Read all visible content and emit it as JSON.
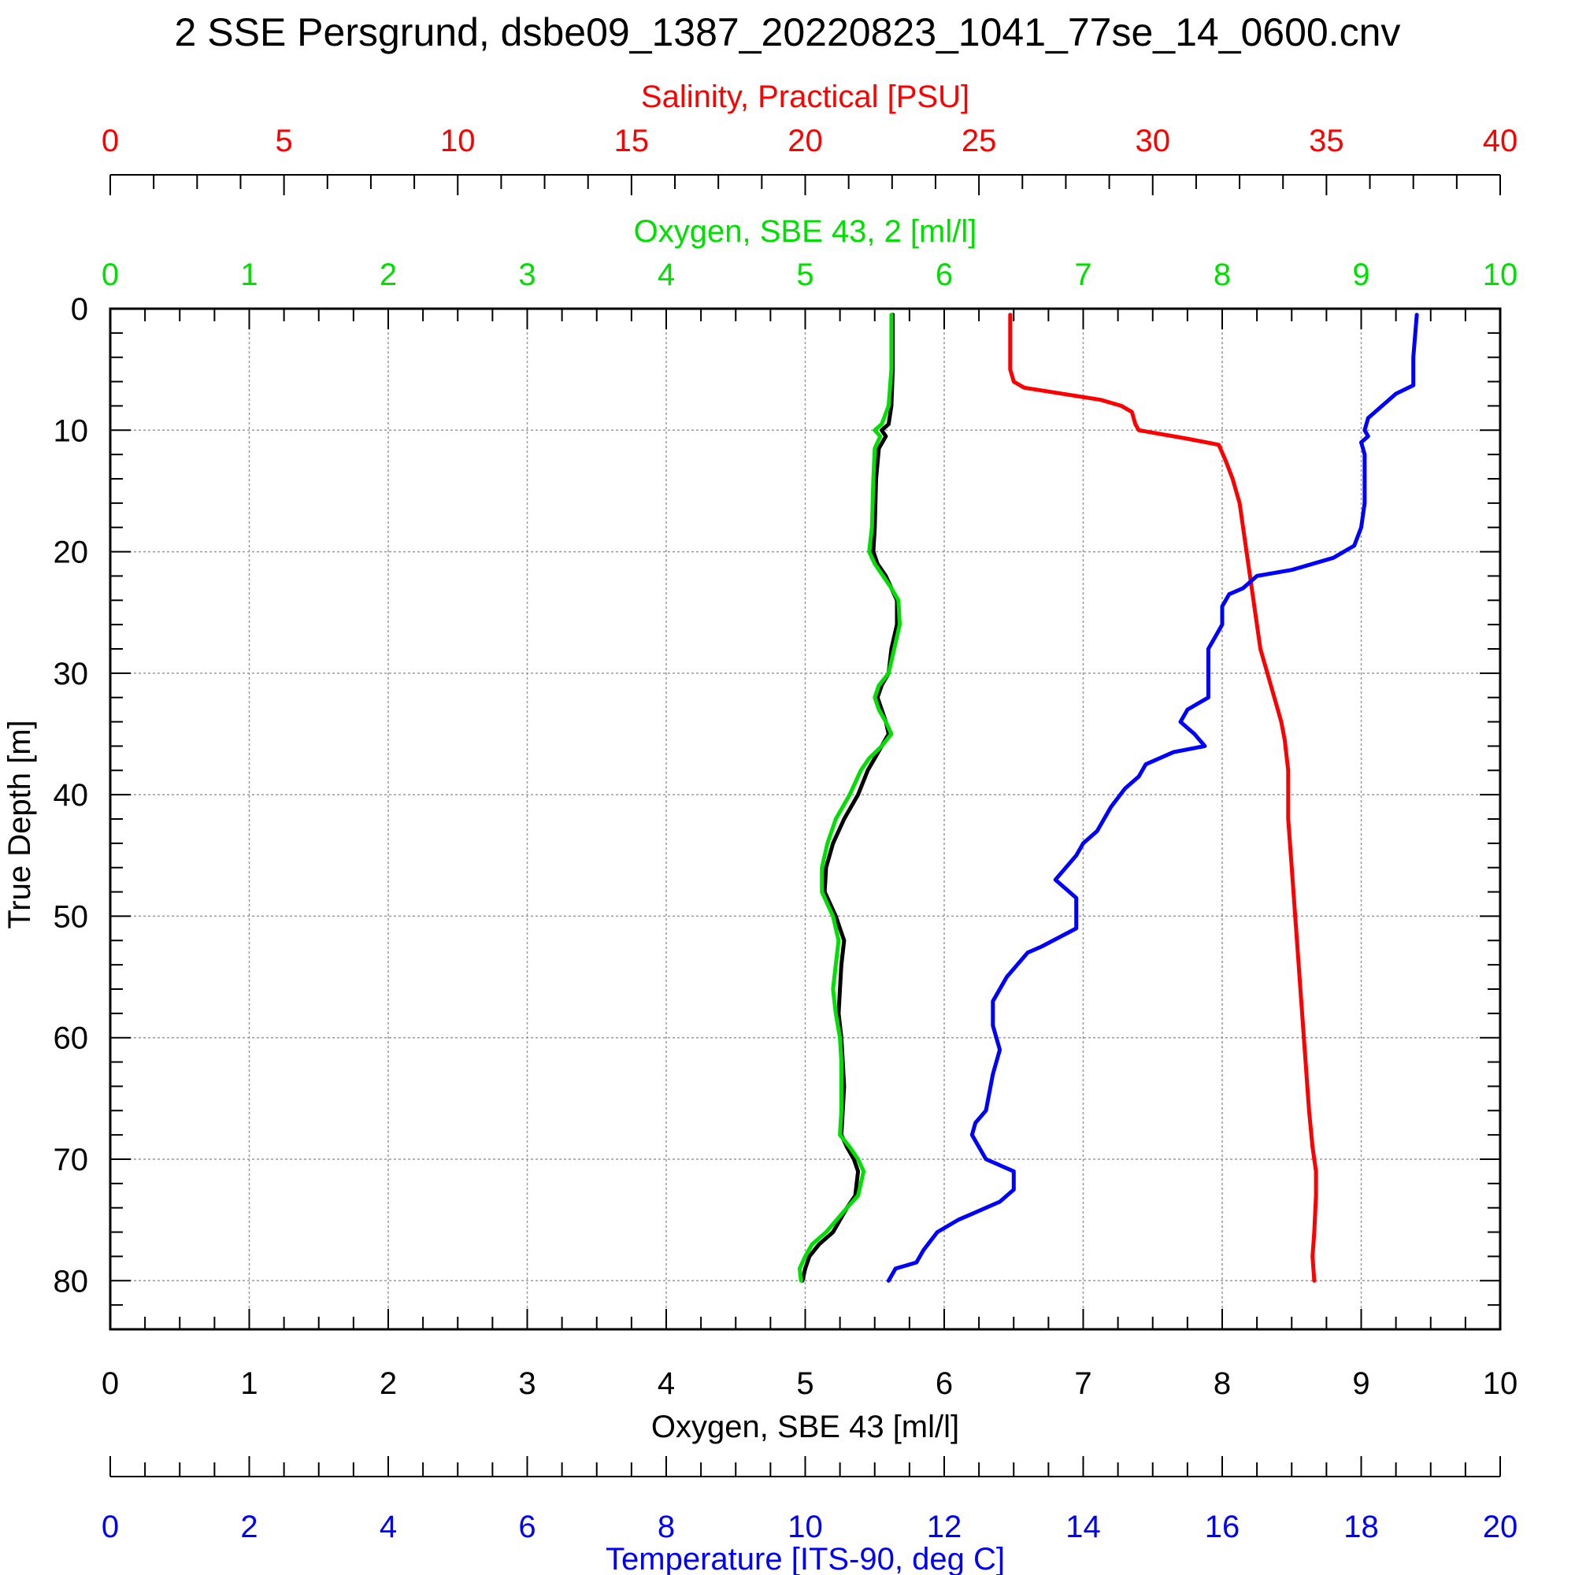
{
  "chart_data": {
    "type": "line",
    "title": "2 SSE Persgrund, dsbe09_1387_20220823_1041_77se_14_0600.cnv",
    "y_axis": {
      "label": "True Depth [m]",
      "range": [
        0,
        84
      ],
      "ticks": [
        0,
        10,
        20,
        30,
        40,
        50,
        60,
        70,
        80
      ],
      "inverted": true
    },
    "x_axes": [
      {
        "id": "salinity",
        "label": "Salinity, Practical [PSU]",
        "color": "#ff0000",
        "range": [
          0,
          40
        ],
        "ticks": [
          0,
          5,
          10,
          15,
          20,
          25,
          30,
          35,
          40
        ],
        "position": "top"
      },
      {
        "id": "oxygen2",
        "label": "Oxygen, SBE 43, 2 [ml/l]",
        "color": "#00e000",
        "range": [
          0,
          10
        ],
        "ticks": [
          0,
          1,
          2,
          3,
          4,
          5,
          6,
          7,
          8,
          9,
          10
        ],
        "position": "top"
      },
      {
        "id": "oxygen",
        "label": "Oxygen, SBE 43 [ml/l]",
        "color": "#000000",
        "range": [
          0,
          10
        ],
        "ticks": [
          0,
          1,
          2,
          3,
          4,
          5,
          6,
          7,
          8,
          9,
          10
        ],
        "position": "bottom"
      },
      {
        "id": "temperature",
        "label": "Temperature [ITS-90, deg C]",
        "color": "#0000ff",
        "range": [
          0,
          20
        ],
        "ticks": [
          0,
          2,
          4,
          6,
          8,
          10,
          12,
          14,
          16,
          18,
          20
        ],
        "position": "bottom"
      }
    ],
    "grid": true,
    "series": [
      {
        "axis": "oxygen",
        "color": "#000000",
        "points": [
          [
            5.63,
            0.5
          ],
          [
            5.63,
            5
          ],
          [
            5.62,
            8
          ],
          [
            5.6,
            9.5
          ],
          [
            5.55,
            10
          ],
          [
            5.58,
            10.5
          ],
          [
            5.53,
            11.5
          ],
          [
            5.51,
            14
          ],
          [
            5.5,
            18
          ],
          [
            5.49,
            20
          ],
          [
            5.52,
            21
          ],
          [
            5.58,
            22
          ],
          [
            5.62,
            23
          ],
          [
            5.66,
            24
          ],
          [
            5.66,
            26
          ],
          [
            5.62,
            28
          ],
          [
            5.6,
            30
          ],
          [
            5.55,
            31
          ],
          [
            5.52,
            32
          ],
          [
            5.55,
            33
          ],
          [
            5.58,
            34
          ],
          [
            5.6,
            35
          ],
          [
            5.55,
            36
          ],
          [
            5.5,
            37
          ],
          [
            5.45,
            38
          ],
          [
            5.38,
            40
          ],
          [
            5.28,
            42
          ],
          [
            5.2,
            44
          ],
          [
            5.15,
            46
          ],
          [
            5.14,
            48
          ],
          [
            5.18,
            49
          ],
          [
            5.22,
            50
          ],
          [
            5.25,
            51
          ],
          [
            5.28,
            52
          ],
          [
            5.26,
            54
          ],
          [
            5.25,
            56
          ],
          [
            5.24,
            58
          ],
          [
            5.26,
            60
          ],
          [
            5.27,
            62
          ],
          [
            5.28,
            64
          ],
          [
            5.27,
            66
          ],
          [
            5.26,
            68
          ],
          [
            5.3,
            69
          ],
          [
            5.35,
            70
          ],
          [
            5.38,
            71
          ],
          [
            5.36,
            73
          ],
          [
            5.3,
            74
          ],
          [
            5.2,
            76
          ],
          [
            5.1,
            77
          ],
          [
            5.03,
            78
          ],
          [
            5.0,
            79
          ],
          [
            4.98,
            80
          ]
        ]
      },
      {
        "axis": "oxygen2",
        "color": "#00e000",
        "points": [
          [
            5.62,
            0.5
          ],
          [
            5.62,
            5
          ],
          [
            5.6,
            8
          ],
          [
            5.55,
            9.5
          ],
          [
            5.5,
            10
          ],
          [
            5.54,
            10.5
          ],
          [
            5.5,
            11.5
          ],
          [
            5.49,
            14
          ],
          [
            5.48,
            18
          ],
          [
            5.46,
            20
          ],
          [
            5.5,
            21
          ],
          [
            5.56,
            22
          ],
          [
            5.62,
            23
          ],
          [
            5.67,
            24
          ],
          [
            5.68,
            26
          ],
          [
            5.64,
            28
          ],
          [
            5.6,
            30
          ],
          [
            5.53,
            31
          ],
          [
            5.5,
            32
          ],
          [
            5.53,
            33
          ],
          [
            5.58,
            34
          ],
          [
            5.62,
            35
          ],
          [
            5.55,
            36
          ],
          [
            5.46,
            37
          ],
          [
            5.4,
            38
          ],
          [
            5.32,
            40
          ],
          [
            5.22,
            42
          ],
          [
            5.16,
            44
          ],
          [
            5.12,
            46
          ],
          [
            5.12,
            48
          ],
          [
            5.16,
            49
          ],
          [
            5.2,
            50
          ],
          [
            5.22,
            51
          ],
          [
            5.24,
            52
          ],
          [
            5.22,
            54
          ],
          [
            5.2,
            56
          ],
          [
            5.22,
            58
          ],
          [
            5.25,
            60
          ],
          [
            5.26,
            62
          ],
          [
            5.26,
            64
          ],
          [
            5.26,
            66
          ],
          [
            5.25,
            68
          ],
          [
            5.32,
            69
          ],
          [
            5.38,
            70
          ],
          [
            5.42,
            71
          ],
          [
            5.38,
            73
          ],
          [
            5.3,
            74
          ],
          [
            5.15,
            76
          ],
          [
            5.05,
            77
          ],
          [
            5.0,
            78
          ],
          [
            4.96,
            79
          ],
          [
            4.97,
            80
          ]
        ]
      },
      {
        "axis": "salinity",
        "color": "#ff0000",
        "points": [
          [
            25.9,
            0.5
          ],
          [
            25.9,
            5
          ],
          [
            26.0,
            6
          ],
          [
            26.3,
            6.5
          ],
          [
            28.5,
            7.5
          ],
          [
            29.1,
            8
          ],
          [
            29.4,
            8.5
          ],
          [
            29.5,
            9.5
          ],
          [
            29.6,
            10
          ],
          [
            31.0,
            10.7
          ],
          [
            31.9,
            11.2
          ],
          [
            32.1,
            12.5
          ],
          [
            32.3,
            14
          ],
          [
            32.5,
            16
          ],
          [
            32.6,
            18
          ],
          [
            32.7,
            20
          ],
          [
            32.8,
            22
          ],
          [
            32.9,
            24
          ],
          [
            33.0,
            26
          ],
          [
            33.1,
            28
          ],
          [
            33.3,
            30
          ],
          [
            33.5,
            32
          ],
          [
            33.7,
            34
          ],
          [
            33.8,
            35.5
          ],
          [
            33.9,
            38
          ],
          [
            33.9,
            42
          ],
          [
            34.0,
            46
          ],
          [
            34.1,
            50
          ],
          [
            34.2,
            54
          ],
          [
            34.3,
            58
          ],
          [
            34.4,
            62
          ],
          [
            34.5,
            66
          ],
          [
            34.6,
            69
          ],
          [
            34.7,
            71
          ],
          [
            34.7,
            73
          ],
          [
            34.65,
            76
          ],
          [
            34.6,
            78
          ],
          [
            34.65,
            80
          ]
        ]
      },
      {
        "axis": "temperature",
        "color": "#0000ff",
        "points": [
          [
            18.8,
            0.5
          ],
          [
            18.75,
            4
          ],
          [
            18.75,
            6.3
          ],
          [
            18.5,
            7
          ],
          [
            18.3,
            8
          ],
          [
            18.1,
            9
          ],
          [
            18.05,
            10
          ],
          [
            18.1,
            10.5
          ],
          [
            18.0,
            11
          ],
          [
            18.05,
            12
          ],
          [
            18.05,
            16
          ],
          [
            18.0,
            18
          ],
          [
            17.9,
            19.5
          ],
          [
            17.6,
            20.5
          ],
          [
            17.0,
            21.5
          ],
          [
            16.5,
            22
          ],
          [
            16.3,
            23
          ],
          [
            16.1,
            23.5
          ],
          [
            16.0,
            24.5
          ],
          [
            16.0,
            26
          ],
          [
            15.9,
            27
          ],
          [
            15.8,
            28
          ],
          [
            15.8,
            32
          ],
          [
            15.5,
            33
          ],
          [
            15.4,
            34
          ],
          [
            15.6,
            35
          ],
          [
            15.75,
            36
          ],
          [
            15.3,
            36.5
          ],
          [
            14.9,
            37.5
          ],
          [
            14.8,
            38.5
          ],
          [
            14.6,
            39.5
          ],
          [
            14.4,
            41
          ],
          [
            14.2,
            43
          ],
          [
            14.0,
            44
          ],
          [
            13.9,
            45
          ],
          [
            13.6,
            47
          ],
          [
            13.9,
            48.5
          ],
          [
            13.9,
            51
          ],
          [
            13.4,
            52.5
          ],
          [
            13.2,
            53
          ],
          [
            12.9,
            55
          ],
          [
            12.7,
            57
          ],
          [
            12.7,
            59
          ],
          [
            12.8,
            61
          ],
          [
            12.7,
            63
          ],
          [
            12.6,
            66
          ],
          [
            12.45,
            67
          ],
          [
            12.4,
            68
          ],
          [
            12.6,
            70
          ],
          [
            13.0,
            71
          ],
          [
            13.0,
            72.5
          ],
          [
            12.8,
            73.5
          ],
          [
            12.4,
            74.5
          ],
          [
            12.2,
            75
          ],
          [
            11.9,
            76
          ],
          [
            11.7,
            77.5
          ],
          [
            11.6,
            78.5
          ],
          [
            11.3,
            79
          ],
          [
            11.2,
            80
          ]
        ]
      }
    ]
  }
}
